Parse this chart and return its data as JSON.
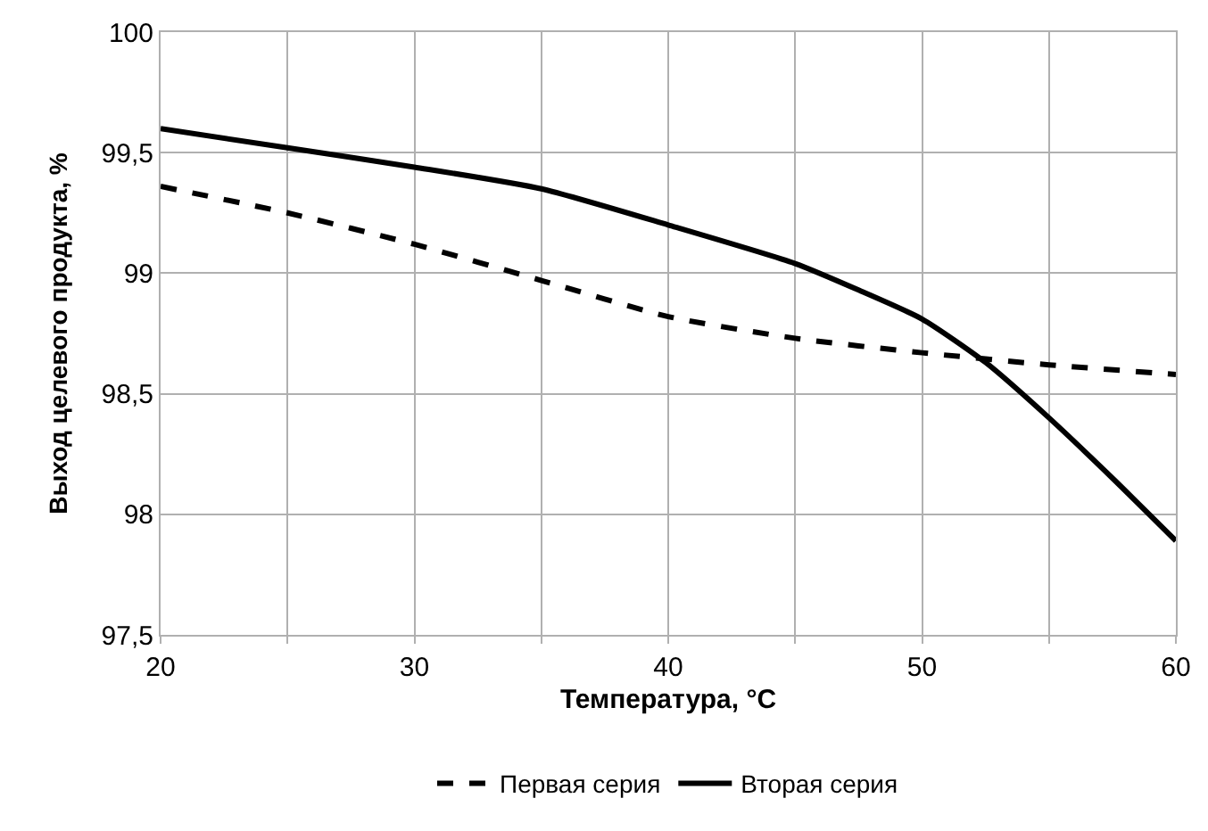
{
  "chart_data": {
    "type": "line",
    "xlabel": "Температура, °C",
    "ylabel": "Выход целевого продукта, %",
    "xlim": [
      20,
      60
    ],
    "xticks": [
      20,
      {
        "value": 25,
        "label": null
      },
      30,
      {
        "value": 35,
        "label": null
      },
      40,
      {
        "value": 45,
        "label": null
      },
      50,
      {
        "value": 55,
        "label": null
      },
      60
    ],
    "ylim": [
      97.5,
      100
    ],
    "yticks": [
      {
        "value": 97.5,
        "label": "97,5"
      },
      98,
      {
        "value": 98.5,
        "label": "98,5"
      },
      99,
      {
        "value": 99.5,
        "label": "99,5"
      },
      100
    ],
    "grid": true,
    "legend": "bottom",
    "marker": "none",
    "series": [
      {
        "name": "Первая серия",
        "color": "#000000",
        "line_style": "dashed",
        "x": [
          20,
          25,
          30,
          35,
          40,
          45,
          50,
          55,
          60
        ],
        "values": [
          99.36,
          99.25,
          99.12,
          98.97,
          98.82,
          98.73,
          98.67,
          98.62,
          98.58
        ]
      },
      {
        "name": "Вторая серия",
        "color": "#000000",
        "line_style": "solid",
        "x": [
          20,
          25,
          30,
          35,
          40,
          45,
          47.5,
          50,
          52.5,
          55,
          57.5,
          60
        ],
        "values": [
          99.6,
          99.52,
          99.44,
          99.35,
          99.2,
          99.04,
          98.93,
          98.81,
          98.63,
          98.4,
          98.15,
          97.89
        ]
      }
    ]
  }
}
